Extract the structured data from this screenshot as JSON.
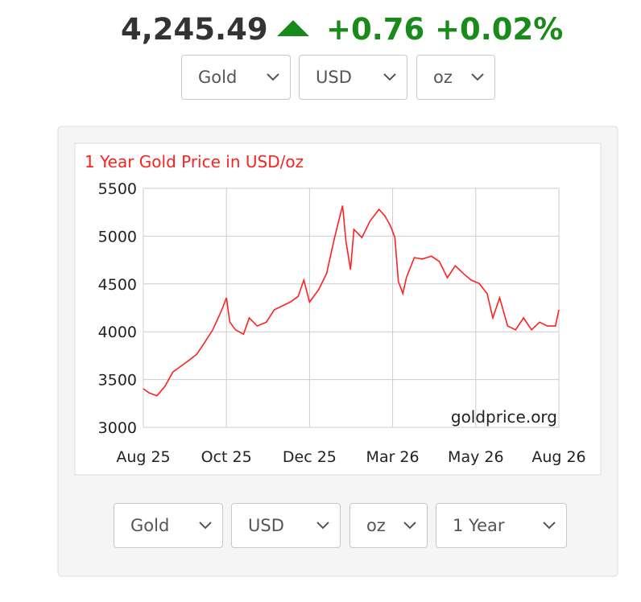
{
  "header": {
    "price": "4,245.49",
    "change": "+0.76",
    "percent": "+0.02%"
  },
  "top_selects": [
    "Gold",
    "USD",
    "oz"
  ],
  "bottom_selects": [
    "Gold",
    "USD",
    "oz",
    "1 Year"
  ],
  "chart_data": {
    "type": "line",
    "title": "1 Year Gold Price in USD/oz",
    "annotation": "goldprice.org",
    "x": [
      0,
      5,
      12,
      19,
      26,
      33,
      40,
      47,
      54,
      61,
      69,
      73,
      76,
      81,
      88,
      93,
      100,
      108,
      115,
      122,
      129,
      136,
      141,
      146,
      154,
      161,
      168,
      175,
      178,
      182,
      185,
      192,
      199,
      207,
      212,
      217,
      221,
      224,
      228,
      231,
      238,
      245,
      253,
      260,
      267,
      274,
      281,
      288,
      295,
      302,
      307,
      313,
      320,
      327,
      334,
      341,
      348,
      355,
      362,
      365
    ],
    "series": [
      {
        "name": "Gold",
        "color": "#ff2020",
        "values": [
          3404,
          3360,
          3330,
          3430,
          3580,
          3640,
          3700,
          3765,
          3890,
          4020,
          4230,
          4355,
          4100,
          4020,
          3975,
          4145,
          4060,
          4100,
          4230,
          4270,
          4310,
          4370,
          4540,
          4310,
          4440,
          4610,
          4985,
          5320,
          4945,
          4650,
          5070,
          4985,
          5155,
          5280,
          5215,
          5110,
          4985,
          4525,
          4400,
          4565,
          4775,
          4760,
          4790,
          4735,
          4565,
          4690,
          4610,
          4540,
          4505,
          4400,
          4145,
          4355,
          4060,
          4020,
          4145,
          4020,
          4100,
          4060,
          4060,
          4230
        ]
      }
    ],
    "xlim": [
      0,
      365
    ],
    "xticks": [
      {
        "value": 0,
        "label": "Aug 25"
      },
      {
        "value": 73,
        "label": "Oct 25"
      },
      {
        "value": 146,
        "label": "Dec 25"
      },
      {
        "value": 219,
        "label": "Mar 26"
      },
      {
        "value": 292,
        "label": "May 26"
      },
      {
        "value": 365,
        "label": "Aug 26"
      }
    ],
    "ylim": [
      3000,
      5500
    ],
    "yticks": [
      3000,
      3500,
      4000,
      4500,
      5000,
      5500
    ],
    "grid": true
  }
}
